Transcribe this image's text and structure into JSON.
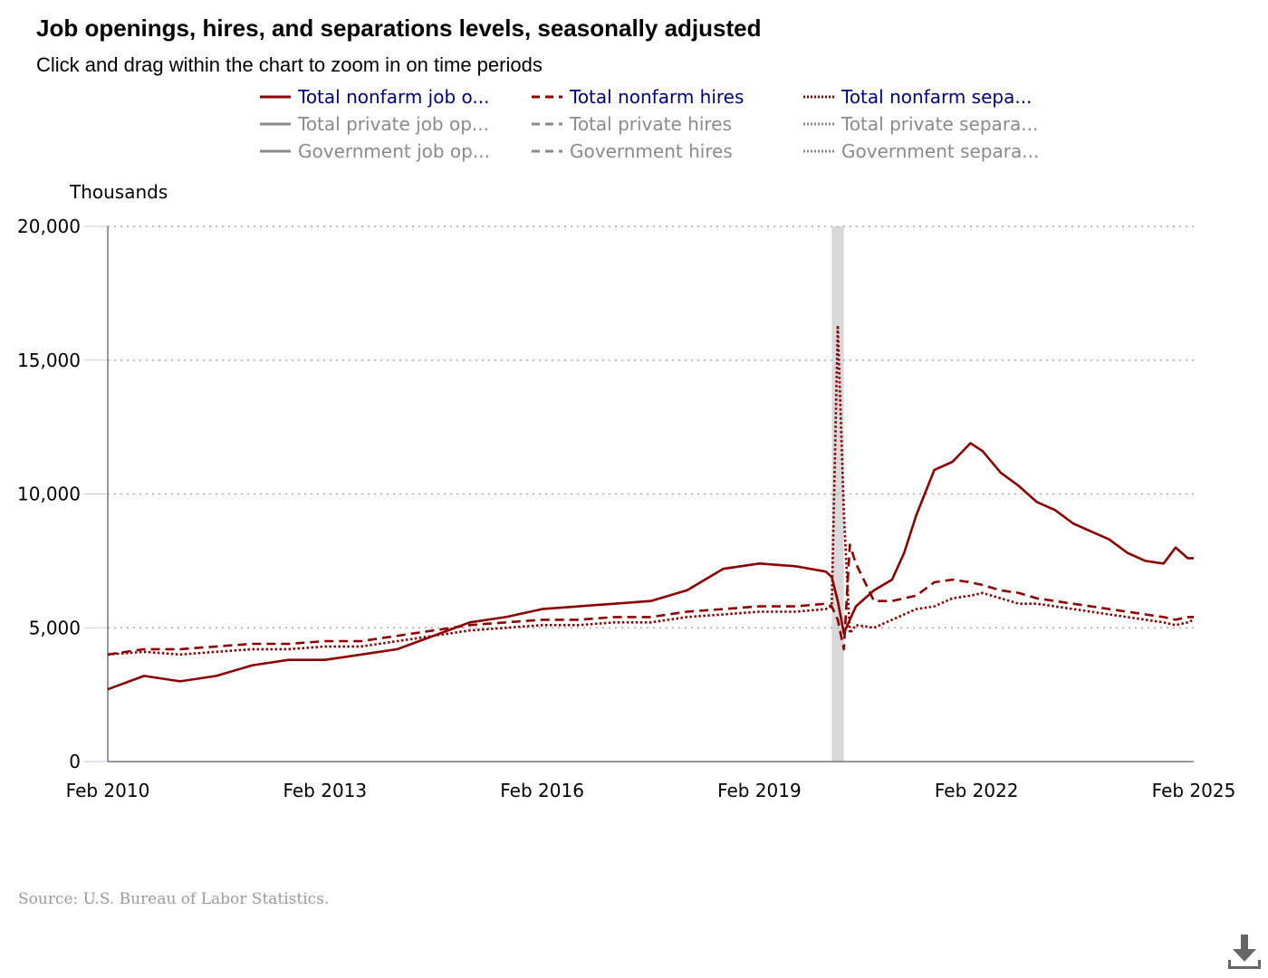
{
  "title": "Job openings, hires, and separations levels, seasonally adjusted",
  "subtitle": "Click and drag within the chart to zoom in on time periods",
  "source": "Source: U.S. Bureau of Labor Statistics.",
  "download_icon": "download-icon",
  "legend": [
    {
      "label": "Total nonfarm job o...",
      "style": "solid",
      "active": true,
      "color": "#8b0000"
    },
    {
      "label": "Total nonfarm hires",
      "style": "dashed",
      "active": true,
      "color": "#8b0000"
    },
    {
      "label": "Total nonfarm sepa...",
      "style": "dotted",
      "active": true,
      "color": "#8b0000"
    },
    {
      "label": "Total private job op...",
      "style": "solid",
      "active": false,
      "color": "#8a8a8a"
    },
    {
      "label": "Total private hires",
      "style": "dashed",
      "active": false,
      "color": "#8a8a8a"
    },
    {
      "label": "Total private separa...",
      "style": "dotted",
      "active": false,
      "color": "#8a8a8a"
    },
    {
      "label": "Government job op...",
      "style": "solid",
      "active": false,
      "color": "#8a8a8a"
    },
    {
      "label": "Government hires",
      "style": "dashed",
      "active": false,
      "color": "#8a8a8a"
    },
    {
      "label": "Government separa...",
      "style": "dotted",
      "active": false,
      "color": "#8a8a8a"
    }
  ],
  "chart_data": {
    "type": "line",
    "ylabel": "Thousands",
    "ylim": [
      0,
      20000
    ],
    "yticks": [
      0,
      5000,
      10000,
      15000,
      20000
    ],
    "ytick_labels": [
      "0",
      "5,000",
      "10,000",
      "15,000",
      "20,000"
    ],
    "xlim": [
      "2010-02",
      "2025-02"
    ],
    "xticks": [
      "2010-02",
      "2013-02",
      "2016-02",
      "2019-02",
      "2022-02",
      "2025-02"
    ],
    "xtick_labels": [
      "Feb 2010",
      "Feb 2013",
      "Feb 2016",
      "Feb 2019",
      "Feb 2022",
      "Feb 2025"
    ],
    "grid": true,
    "recession_band": [
      "2020-02",
      "2020-04"
    ],
    "series": [
      {
        "name": "Total nonfarm job o...",
        "style": "solid",
        "color": "#8b0000",
        "x": [
          "2010-02",
          "2010-08",
          "2011-02",
          "2011-08",
          "2012-02",
          "2012-08",
          "2013-02",
          "2013-08",
          "2014-02",
          "2014-08",
          "2015-02",
          "2015-08",
          "2016-02",
          "2016-08",
          "2017-02",
          "2017-08",
          "2018-02",
          "2018-08",
          "2019-02",
          "2019-08",
          "2020-01",
          "2020-02",
          "2020-03",
          "2020-04",
          "2020-06",
          "2020-09",
          "2020-12",
          "2021-02",
          "2021-04",
          "2021-07",
          "2021-10",
          "2022-01",
          "2022-03",
          "2022-06",
          "2022-09",
          "2022-12",
          "2023-03",
          "2023-06",
          "2023-09",
          "2023-12",
          "2024-03",
          "2024-06",
          "2024-09",
          "2024-11",
          "2025-01",
          "2025-02"
        ],
        "y": [
          2700,
          3200,
          3000,
          3200,
          3600,
          3800,
          3800,
          4000,
          4200,
          4700,
          5200,
          5400,
          5700,
          5800,
          5900,
          6000,
          6400,
          7200,
          7400,
          7300,
          7100,
          6900,
          6000,
          4800,
          5800,
          6400,
          6800,
          7800,
          9200,
          10900,
          11200,
          11900,
          11600,
          10800,
          10300,
          9700,
          9400,
          8900,
          8600,
          8300,
          7800,
          7500,
          7400,
          8000,
          7600,
          7600
        ]
      },
      {
        "name": "Total nonfarm hires",
        "style": "dashed",
        "color": "#8b0000",
        "x": [
          "2010-02",
          "2010-08",
          "2011-02",
          "2011-08",
          "2012-02",
          "2012-08",
          "2013-02",
          "2013-08",
          "2014-02",
          "2014-08",
          "2015-02",
          "2015-08",
          "2016-02",
          "2016-08",
          "2017-02",
          "2017-08",
          "2018-02",
          "2018-08",
          "2019-02",
          "2019-08",
          "2020-01",
          "2020-02",
          "2020-03",
          "2020-04",
          "2020-05",
          "2020-06",
          "2020-09",
          "2020-12",
          "2021-04",
          "2021-07",
          "2021-10",
          "2022-01",
          "2022-03",
          "2022-06",
          "2022-09",
          "2022-12",
          "2023-03",
          "2023-06",
          "2023-09",
          "2023-12",
          "2024-03",
          "2024-06",
          "2024-09",
          "2024-11",
          "2025-01",
          "2025-02"
        ],
        "y": [
          4000,
          4200,
          4200,
          4300,
          4400,
          4400,
          4500,
          4500,
          4700,
          4900,
          5100,
          5200,
          5300,
          5300,
          5400,
          5400,
          5600,
          5700,
          5800,
          5800,
          5900,
          5800,
          5300,
          4200,
          8100,
          7400,
          6000,
          6000,
          6200,
          6700,
          6800,
          6700,
          6600,
          6400,
          6300,
          6100,
          6000,
          5900,
          5800,
          5700,
          5600,
          5500,
          5400,
          5300,
          5400,
          5400
        ]
      },
      {
        "name": "Total nonfarm sepa...",
        "style": "dotted",
        "color": "#8b0000",
        "x": [
          "2010-02",
          "2010-08",
          "2011-02",
          "2011-08",
          "2012-02",
          "2012-08",
          "2013-02",
          "2013-08",
          "2014-02",
          "2014-08",
          "2015-02",
          "2015-08",
          "2016-02",
          "2016-08",
          "2017-02",
          "2017-08",
          "2018-02",
          "2018-08",
          "2019-02",
          "2019-08",
          "2020-01",
          "2020-02",
          "2020-03",
          "2020-04",
          "2020-05",
          "2020-06",
          "2020-09",
          "2020-12",
          "2021-04",
          "2021-07",
          "2021-10",
          "2022-01",
          "2022-03",
          "2022-06",
          "2022-09",
          "2022-12",
          "2023-03",
          "2023-06",
          "2023-09",
          "2023-12",
          "2024-03",
          "2024-06",
          "2024-09",
          "2024-11",
          "2025-01",
          "2025-02"
        ],
        "y": [
          4000,
          4100,
          4000,
          4100,
          4200,
          4200,
          4300,
          4300,
          4500,
          4700,
          4900,
          5000,
          5100,
          5100,
          5200,
          5200,
          5400,
          5500,
          5600,
          5600,
          5700,
          5800,
          16300,
          9300,
          4800,
          5100,
          5000,
          5300,
          5700,
          5800,
          6100,
          6200,
          6300,
          6100,
          5900,
          5900,
          5800,
          5700,
          5600,
          5500,
          5400,
          5300,
          5200,
          5100,
          5200,
          5300
        ]
      }
    ]
  }
}
